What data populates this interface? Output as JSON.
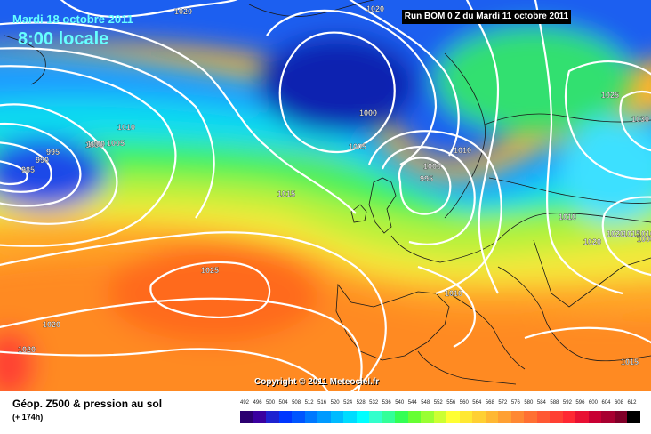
{
  "header": {
    "date": "Mardi 18 octobre 2011",
    "time": "8:00 locale",
    "run": "Run BOM 0 Z du Mardi 11 octobre 2011"
  },
  "copyright": "Copyright © 2011 Meteociel.fr",
  "footer": {
    "title": "Géop. Z500 & pression au sol",
    "subtitle": "(+ 174h)"
  },
  "isobar_labels": [
    "1020",
    "1020",
    "1000",
    "995",
    "990",
    "985",
    "1000",
    "1005",
    "1010",
    "1015",
    "1025",
    "1020",
    "1020",
    "1000",
    "1005",
    "1010",
    "1000",
    "995",
    "1010",
    "1010",
    "1020",
    "1020",
    "1015",
    "1010",
    "1000",
    "1025",
    "1030",
    "1015"
  ],
  "color_scale": {
    "labels": [
      "492",
      "496",
      "500",
      "504",
      "508",
      "512",
      "516",
      "520",
      "524",
      "528",
      "532",
      "536",
      "540",
      "544",
      "548",
      "552",
      "556",
      "560",
      "564",
      "568",
      "572",
      "576",
      "580",
      "584",
      "588",
      "592",
      "596",
      "600",
      "604",
      "608",
      "612"
    ],
    "colors": [
      "#2b0070",
      "#3a00a0",
      "#1e22d0",
      "#0036ff",
      "#0055ff",
      "#0078ff",
      "#009aff",
      "#00bbff",
      "#00dcff",
      "#00ffff",
      "#33ffcc",
      "#33ff99",
      "#33ff55",
      "#66ff33",
      "#99ff33",
      "#ccff33",
      "#ffff33",
      "#ffe833",
      "#ffd033",
      "#ffb833",
      "#ffa033",
      "#ff8833",
      "#ff7033",
      "#ff5833",
      "#ff4033",
      "#ff2833",
      "#e81033",
      "#c80033",
      "#a80030",
      "#800028",
      "#000000"
    ]
  }
}
